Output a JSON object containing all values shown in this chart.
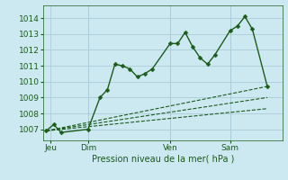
{
  "title": "Pression niveau de la mer( hPa )",
  "ylabel_ticks": [
    1007,
    1008,
    1009,
    1010,
    1011,
    1012,
    1013,
    1014
  ],
  "ylim": [
    1006.3,
    1014.8
  ],
  "background_color": "#cce8f0",
  "grid_color": "#aaccd8",
  "line_color": "#1a5c1a",
  "x_ticks_labels": [
    "Jeu",
    "Dim",
    "Ven",
    "Sam"
  ],
  "x_ticks_pos": [
    0.5,
    3.0,
    8.5,
    12.5
  ],
  "xlim": [
    0,
    16
  ],
  "main_series": {
    "x": [
      0.2,
      0.7,
      1.2,
      3.0,
      3.8,
      4.3,
      4.8,
      5.3,
      5.8,
      6.3,
      6.8,
      7.3,
      8.5,
      9.0,
      9.5,
      10.0,
      10.5,
      11.0,
      11.5,
      12.5,
      13.0,
      13.5,
      14.0,
      15.0
    ],
    "y": [
      1006.9,
      1007.3,
      1006.8,
      1007.0,
      1009.0,
      1009.5,
      1011.1,
      1011.0,
      1010.8,
      1010.3,
      1010.5,
      1010.8,
      1012.4,
      1012.4,
      1013.1,
      1012.2,
      1011.5,
      1011.1,
      1011.7,
      1013.2,
      1013.5,
      1014.1,
      1013.3,
      1009.7
    ]
  },
  "fan_lines": [
    {
      "x": [
        0.2,
        15.0
      ],
      "y": [
        1006.9,
        1009.7
      ]
    },
    {
      "x": [
        0.2,
        15.0
      ],
      "y": [
        1006.9,
        1009.0
      ]
    },
    {
      "x": [
        0.2,
        15.0
      ],
      "y": [
        1006.9,
        1008.3
      ]
    }
  ],
  "vlines_x": [
    3.0,
    8.5,
    12.5
  ]
}
